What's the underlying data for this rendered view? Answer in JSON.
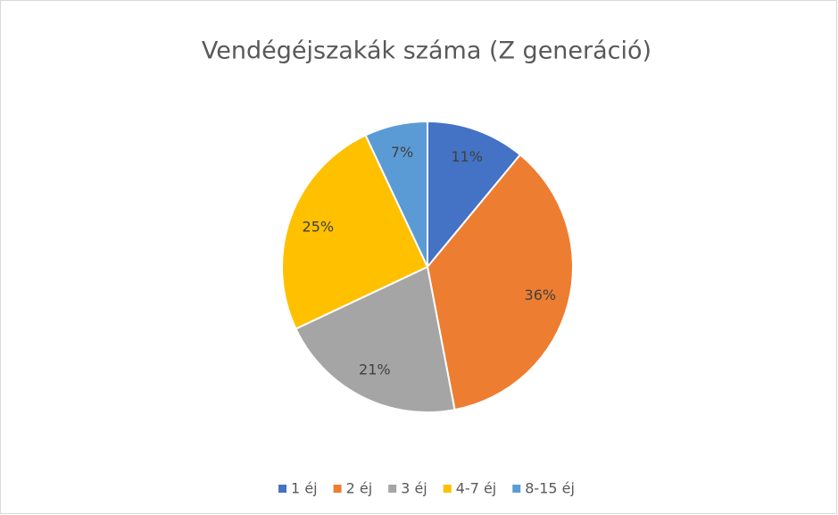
{
  "chart_data": {
    "type": "pie",
    "title": "Vendégéjszakák száma (Z generáció)",
    "categories": [
      "1 éj",
      "2 éj",
      "3 éj",
      "4-7 éj",
      "8-15 éj"
    ],
    "values": [
      11,
      36,
      21,
      25,
      7
    ],
    "value_labels": [
      "11%",
      "36%",
      "21%",
      "25%",
      "7%"
    ],
    "colors": [
      "#4472c4",
      "#ed7d31",
      "#a5a5a5",
      "#ffc000",
      "#5b9bd5"
    ],
    "legend": "bottom"
  }
}
